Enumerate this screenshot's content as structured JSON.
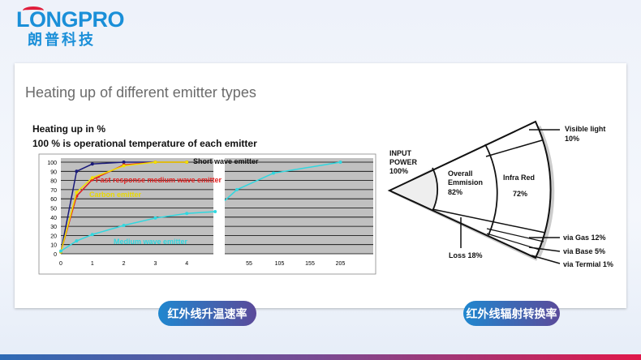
{
  "logo": {
    "en": "LONGPRO",
    "cn": "朗普科技"
  },
  "slide_title": "Heating up of different emitter types",
  "chart_data": {
    "type": "line",
    "title": "Heating up in %",
    "subtitle": "100 % is operational temperature of each emitter",
    "xlabel": "",
    "ylabel": "",
    "ylim": [
      0,
      100
    ],
    "yticks": [
      "0",
      "10",
      "20",
      "30",
      "40",
      "50",
      "60",
      "70",
      "80",
      "90",
      "100"
    ],
    "xticks_left": [
      "0",
      "1",
      "2",
      "3",
      "4"
    ],
    "xticks_right": [
      "55",
      "105",
      "155",
      "205"
    ],
    "broken_x_axis": true,
    "grid": true,
    "series": [
      {
        "name": "Short wave emitter",
        "color": "#1a1a7a",
        "points": [
          [
            0,
            2
          ],
          [
            0.5,
            90
          ],
          [
            1,
            98
          ],
          [
            2,
            100
          ],
          [
            4,
            100
          ]
        ]
      },
      {
        "name": "Fast response medium wave emitter",
        "color": "#e02020",
        "points": [
          [
            0,
            2
          ],
          [
            0.5,
            63
          ],
          [
            1,
            81
          ],
          [
            2,
            97
          ],
          [
            3,
            100
          ],
          [
            4,
            100
          ]
        ]
      },
      {
        "name": "Carbon emitter",
        "color": "#f0e000",
        "points": [
          [
            0,
            2
          ],
          [
            0.5,
            67
          ],
          [
            1,
            83
          ],
          [
            2,
            96
          ],
          [
            3,
            100
          ],
          [
            4,
            100
          ]
        ]
      },
      {
        "name": "Medium wave emitter",
        "color": "#30d8e0",
        "points": [
          [
            0,
            3
          ],
          [
            0.5,
            14
          ],
          [
            1,
            21
          ],
          [
            2,
            31
          ],
          [
            3,
            39
          ],
          [
            4,
            44
          ],
          [
            4.9,
            46
          ],
          [
            15,
            58
          ],
          [
            35,
            70
          ],
          [
            95,
            88
          ],
          [
            205,
            100
          ]
        ]
      }
    ]
  },
  "diagram": {
    "input": [
      "INPUT",
      "POWER",
      "100%"
    ],
    "overall": [
      "Overall",
      "Emmision",
      "82%"
    ],
    "infrared": [
      "Infra Red",
      "72%"
    ],
    "visible": [
      "Visible light",
      "10%"
    ],
    "loss": "Loss 18%",
    "gas": "via Gas 12%",
    "base": "via Base  5%",
    "terminal": "via Termial 1%"
  },
  "buttons": {
    "left": "红外线升温速率",
    "right": "红外线辐射转换率"
  }
}
